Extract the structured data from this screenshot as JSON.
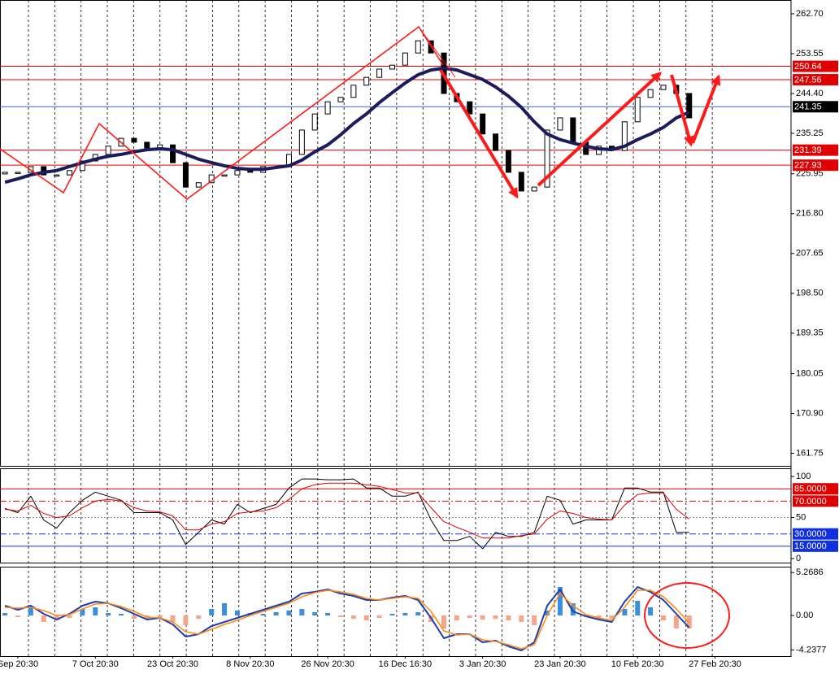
{
  "chart_data": [
    {
      "type": "candlestick",
      "values": [
        226.3,
        226.3,
        227.6,
        225.7,
        225.7,
        226.7,
        228.9,
        230.4,
        232.3,
        234.1,
        233.2,
        231.9,
        232.6,
        228.5,
        222.9,
        223.9,
        225.7,
        225.7,
        226.7,
        226.3,
        227.6,
        227.6,
        230.4,
        236.0,
        239.7,
        242.5,
        243.5,
        246.3,
        248.1,
        250.0,
        250.9,
        253.7,
        256.5,
        253.7,
        244.4,
        242.5,
        239.7,
        235.1,
        231.3,
        226.3,
        222.0,
        222.9,
        236.0,
        238.8,
        233.2,
        230.4,
        232.3,
        231.3,
        237.9,
        243.5,
        245.3,
        246.3,
        244.4,
        238.8,
        null,
        null
      ],
      "colors": {
        "up": "#ffffff",
        "down": "#000000",
        "edge": "#000000"
      },
      "series": [
        {
          "color": "#1c1c5c",
          "values": [
            224.0,
            224.8,
            225.7,
            226.3,
            226.7,
            227.6,
            228.5,
            229.3,
            230.0,
            230.4,
            231.0,
            231.5,
            231.7,
            231.5,
            230.4,
            229.3,
            228.5,
            227.8,
            227.2,
            227.0,
            227.0,
            227.4,
            227.8,
            229.1,
            231.0,
            232.6,
            234.9,
            237.5,
            239.7,
            242.3,
            244.6,
            246.8,
            248.7,
            249.8,
            250.2,
            249.8,
            248.7,
            247.6,
            245.9,
            243.8,
            241.2,
            237.9,
            235.1,
            233.8,
            233.0,
            232.3,
            231.7,
            231.5,
            232.3,
            233.8,
            235.1,
            236.6,
            238.8,
            240.1,
            null,
            null
          ]
        }
      ],
      "ylim": [
        158.87,
        265.87
      ],
      "yticks": [
        {
          "value": 262.7,
          "label": "262.70"
        },
        253.55,
        {
          "value": 244.4,
          "label": "244.40"
        },
        235.25,
        225.95,
        {
          "value": 216.8,
          "label": "216.80"
        },
        207.65,
        {
          "value": 198.5,
          "label": "198.50"
        },
        189.35,
        180.05,
        {
          "value": 170.9,
          "label": "170.90"
        },
        161.75
      ],
      "levels": [
        {
          "value": 250.64,
          "color": "#e00000",
          "label_bg": "#e00000"
        },
        {
          "value": 247.56,
          "color": "#e00000",
          "label_bg": "#e00000"
        },
        {
          "value": 241.35,
          "color": "#4060d0",
          "label_bg": "#000000"
        },
        {
          "value": 231.39,
          "color": "#e00000",
          "label_bg": "#e00000"
        },
        {
          "value": 227.93,
          "color": "#e00000",
          "label_bg": "#e00000"
        }
      ]
    },
    {
      "type": "line",
      "series": [
        {
          "color": "#000000",
          "values": [
            61,
            56,
            76,
            47,
            37,
            56,
            71,
            81,
            76,
            71,
            56,
            56,
            56,
            47,
            17,
            32,
            47,
            42,
            66,
            56,
            61,
            66,
            86,
            97,
            97,
            96,
            96,
            97,
            86,
            86,
            76,
            76,
            81,
            47,
            22,
            22,
            27,
            12,
            32,
            27,
            27,
            32,
            76,
            71,
            42,
            47,
            47,
            47,
            86,
            86,
            81,
            81,
            32,
            32,
            null,
            null
          ]
        },
        {
          "color": "#e00000",
          "values": [
            60,
            58,
            65,
            55,
            50,
            52,
            62,
            70,
            72,
            70,
            62,
            58,
            57,
            52,
            35,
            35,
            42,
            45,
            55,
            57,
            58,
            62,
            72,
            85,
            90,
            92,
            92,
            92,
            90,
            88,
            84,
            80,
            80,
            62,
            45,
            38,
            32,
            25,
            25,
            25,
            28,
            30,
            48,
            58,
            55,
            50,
            48,
            47,
            65,
            78,
            80,
            80,
            60,
            48,
            null,
            null
          ]
        }
      ],
      "ylim": [
        -5,
        110
      ],
      "yticks": [
        0,
        50,
        100
      ],
      "levels": [
        {
          "value": 85,
          "label": "85.0000",
          "color": "#e00000",
          "label_bg": "#e00000"
        },
        {
          "value": 70,
          "label": "70.0000",
          "color": "#e00000",
          "label_bg": "#e00000",
          "dash": "8,3,2,3"
        },
        {
          "value": 50,
          "color": "#888888",
          "dash": "2,2"
        },
        {
          "value": 30,
          "label": "30.0000",
          "color": "#1030e0",
          "label_bg": "#1030e0",
          "dash": "8,3,2,3"
        },
        {
          "value": 15,
          "label": "15.0000",
          "color": "#1030e0",
          "label_bg": "#1030e0"
        }
      ]
    },
    {
      "type": "macd",
      "categories": [
        null,
        "Sep 20:30",
        null,
        null,
        null,
        null,
        null,
        "7 Oct 20:30",
        null,
        null,
        null,
        null,
        null,
        "23 Oct 20:30",
        null,
        null,
        null,
        null,
        null,
        "8 Nov 20:30",
        null,
        null,
        null,
        null,
        null,
        "26 Nov 20:30",
        null,
        null,
        null,
        null,
        null,
        "16 Dec 16:30",
        null,
        null,
        null,
        null,
        null,
        "3 Jan 20:30",
        null,
        null,
        null,
        null,
        null,
        "23 Jan 20:30",
        null,
        null,
        null,
        null,
        null,
        "10 Feb 20:30",
        null,
        null,
        null,
        null,
        null,
        "27 Feb 20:30"
      ],
      "values": [
        0.3,
        -0.2,
        1.0,
        -0.8,
        -0.6,
        -0.3,
        0.8,
        1.0,
        0.3,
        0.2,
        -0.4,
        -0.5,
        -0.4,
        -0.8,
        -1.2,
        -0.4,
        0.8,
        1.5,
        0.6,
        0.3,
        0.2,
        0.4,
        0.6,
        0.8,
        0.4,
        0.3,
        -0.2,
        -0.4,
        -0.6,
        -0.3,
        0.2,
        0.3,
        0.4,
        -0.8,
        -1.6,
        -0.6,
        -0.3,
        -0.5,
        -0.4,
        -0.6,
        -0.8,
        -1.2,
        0.6,
        3.5,
        1.5,
        -0.2,
        -0.5,
        -0.4,
        0.8,
        1.8,
        1.0,
        -0.6,
        -1.6,
        -1.6,
        null,
        null
      ],
      "colors": {
        "up": "#3a8ee0",
        "down": "#f6a58a"
      },
      "series": [
        {
          "color": "#1f3ea8",
          "values": [
            1.2,
            0.7,
            1.2,
            0.2,
            -0.5,
            0.2,
            1.2,
            1.7,
            1.5,
            0.9,
            0.2,
            -0.5,
            -0.3,
            -1.1,
            -2.6,
            -2.3,
            -1.3,
            -0.8,
            -0.3,
            0.2,
            0.7,
            1.2,
            1.7,
            2.7,
            2.9,
            3.2,
            2.7,
            2.4,
            1.9,
            1.9,
            2.2,
            2.4,
            1.9,
            -0.3,
            -2.8,
            -2.3,
            -2.3,
            -3.3,
            -3.1,
            -3.8,
            -4.3,
            -3.3,
            1.2,
            3.2,
            0.5,
            -0.1,
            -0.5,
            -0.8,
            1.7,
            3.5,
            2.9,
            1.9,
            0.2,
            -1.5,
            null,
            null
          ]
        },
        {
          "color": "#ff8c1a",
          "values": [
            1.0,
            0.9,
            1.0,
            0.6,
            0.0,
            0.1,
            0.8,
            1.4,
            1.5,
            1.1,
            0.5,
            -0.2,
            -0.3,
            -0.8,
            -2.0,
            -2.3,
            -1.7,
            -1.1,
            -0.6,
            0.0,
            0.5,
            1.0,
            1.5,
            2.3,
            2.8,
            3.1,
            2.9,
            2.6,
            2.1,
            1.9,
            2.1,
            2.3,
            2.1,
            0.5,
            -1.9,
            -2.4,
            -2.3,
            -3.0,
            -3.2,
            -3.6,
            -4.1,
            -3.6,
            0.0,
            2.7,
            1.2,
            0.1,
            -0.3,
            -0.6,
            1.0,
            3.1,
            3.1,
            2.3,
            0.8,
            -0.9,
            null,
            null
          ]
        }
      ],
      "ylim": [
        -5.0,
        6.0
      ],
      "yticks": [
        5.2686,
        {
          "value": 0,
          "label": "0.00"
        },
        -4.2377
      ]
    }
  ]
}
